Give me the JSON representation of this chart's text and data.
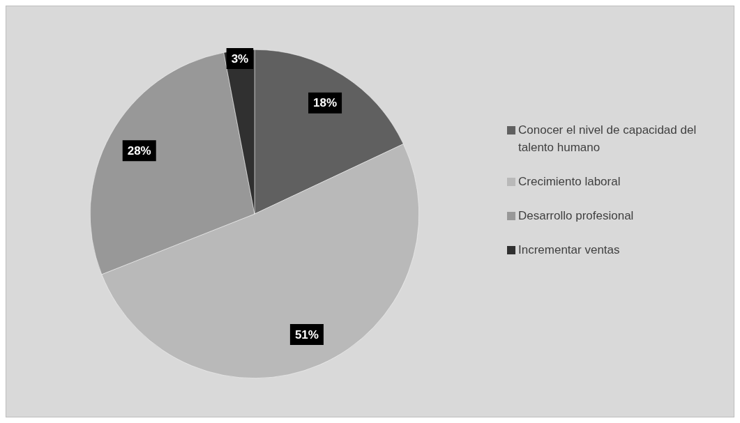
{
  "chart_data": {
    "type": "pie",
    "categories": [
      "Conocer el nivel de capacidad del talento humano",
      "Crecimiento laboral",
      "Desarrollo profesional",
      "Incrementar ventas"
    ],
    "values": [
      18,
      51,
      28,
      3
    ],
    "colors": [
      "#606060",
      "#b9b9b9",
      "#989898",
      "#303030"
    ],
    "value_labels": [
      "18%",
      "51%",
      "28%",
      "3%"
    ],
    "legend": "right"
  }
}
